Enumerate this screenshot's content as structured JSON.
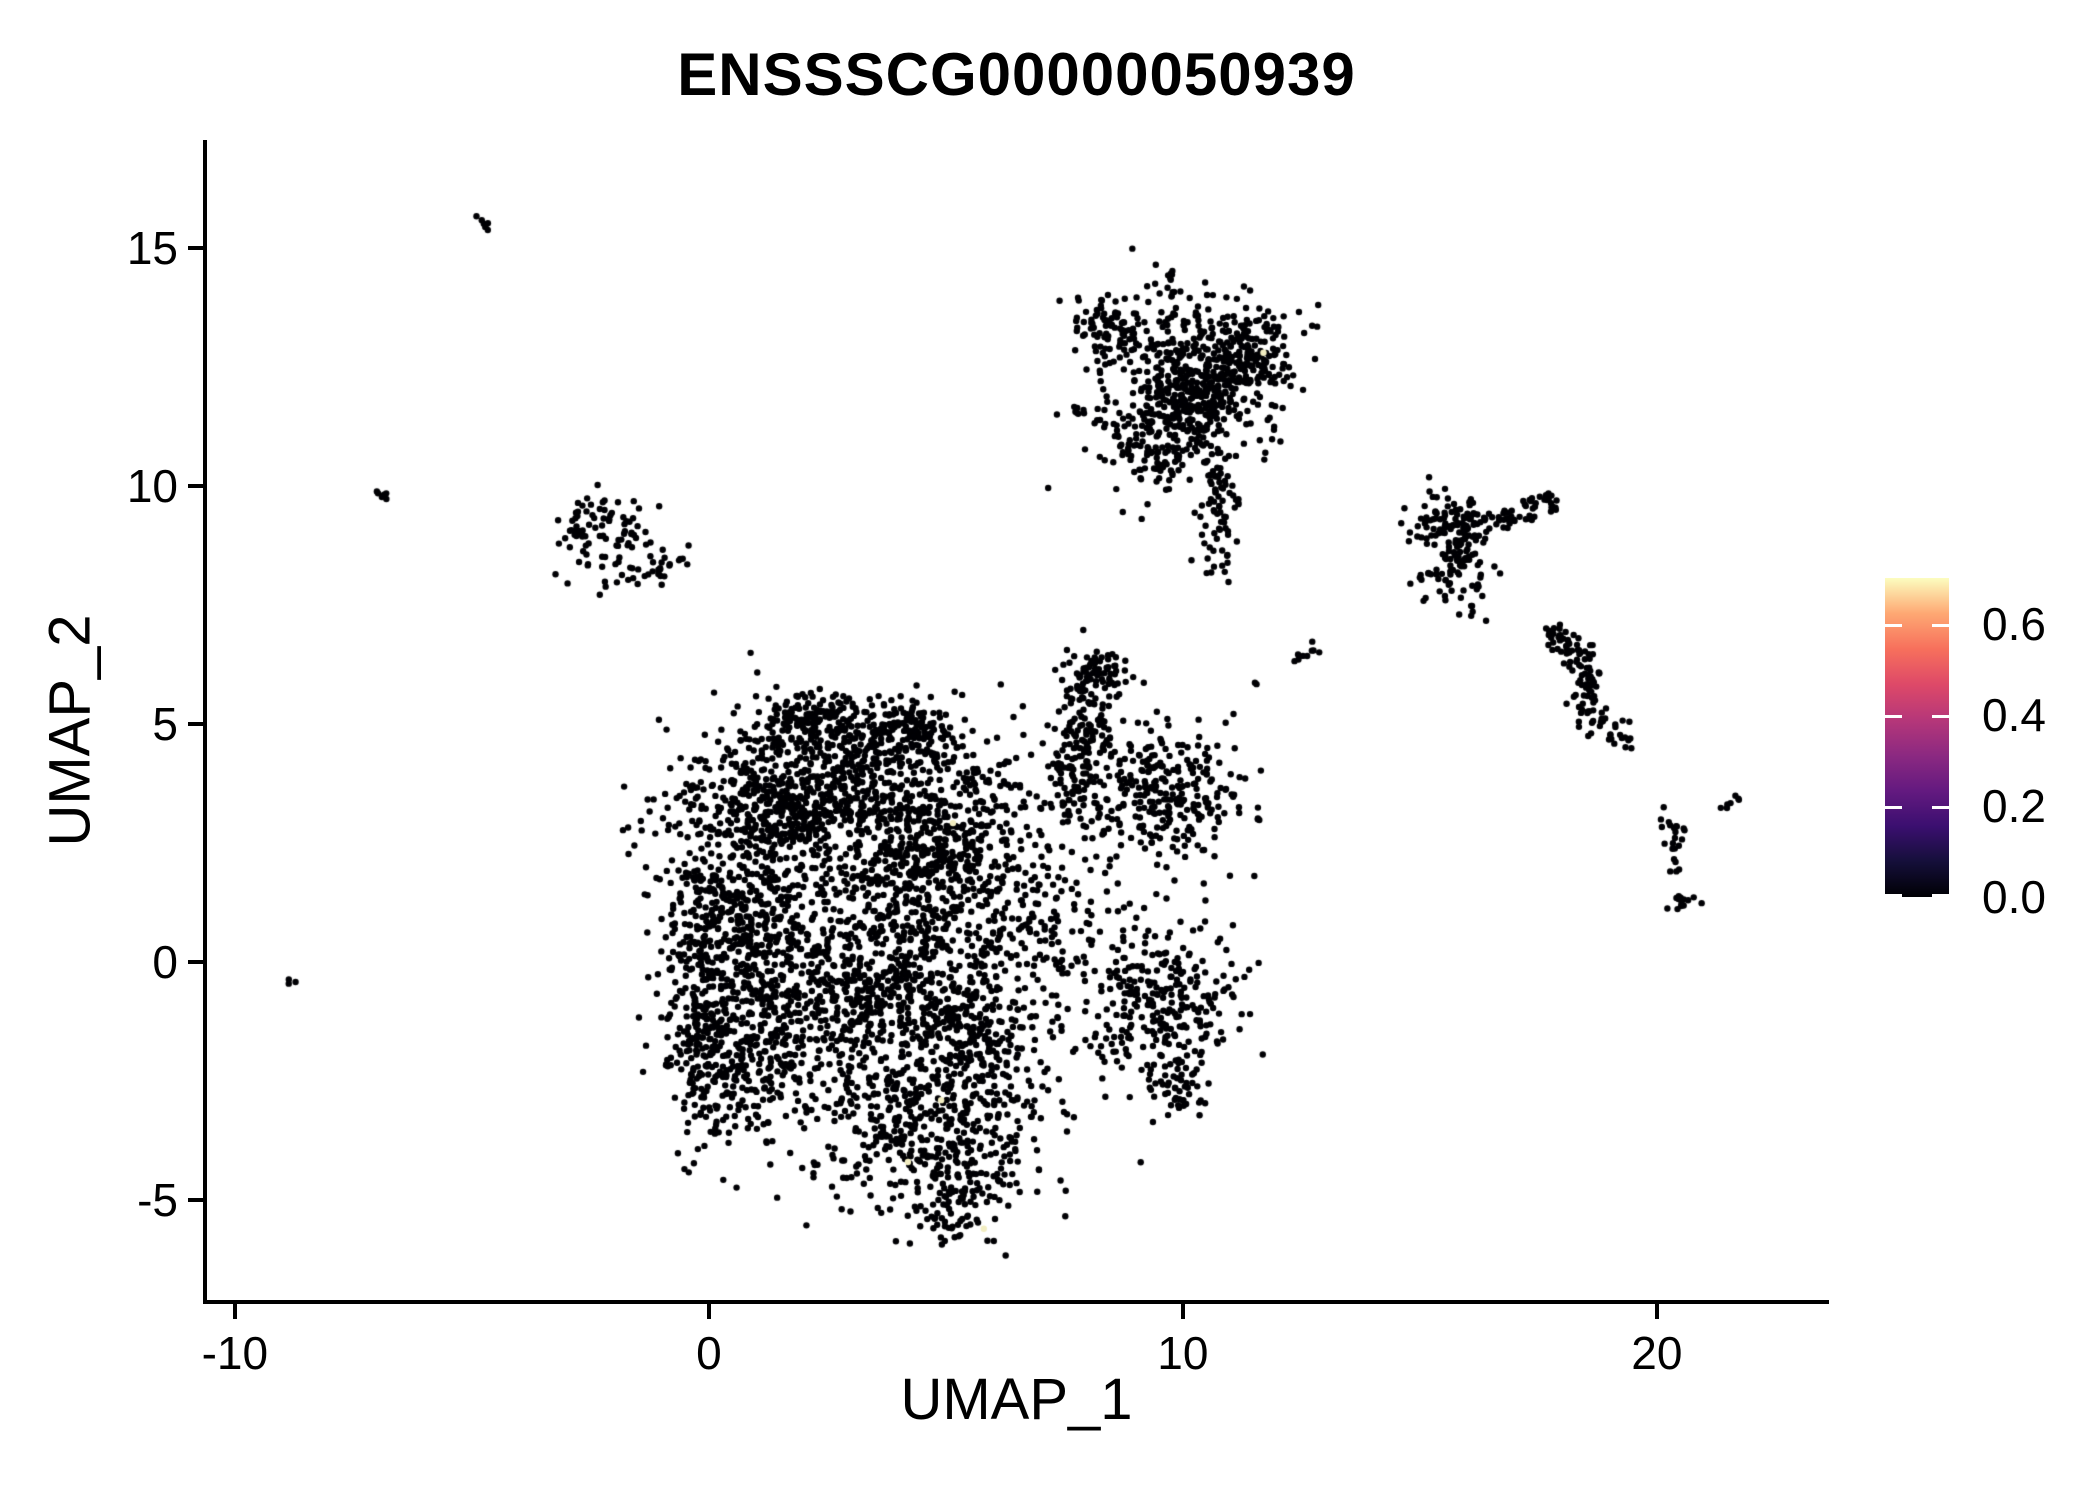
{
  "title": "ENSSSCG00000050939",
  "axes": {
    "x": {
      "label": "UMAP_1",
      "ticks": [
        "-10",
        "0",
        "10",
        "20"
      ],
      "tick_values": [
        -10,
        0,
        10,
        20
      ]
    },
    "y": {
      "label": "UMAP_2",
      "ticks": [
        "15",
        "10",
        "5",
        "0",
        "-5"
      ],
      "tick_values": [
        15,
        10,
        5,
        0,
        -5
      ]
    }
  },
  "legend": {
    "tick_labels": [
      "0.6",
      "0.4",
      "0.2",
      "0.0"
    ],
    "tick_values": [
      0.6,
      0.4,
      0.2,
      0.0
    ],
    "limits": [
      0,
      0.7
    ],
    "colormap_name": "magma",
    "gradient_bottom_to_top": [
      "#000004",
      "#150F3A",
      "#3B0F70",
      "#641A80",
      "#8C2981",
      "#B63779",
      "#DE4968",
      "#F7705C",
      "#FEA873",
      "#FCFDBF"
    ]
  },
  "chart_data": {
    "type": "scatter",
    "title": "ENSSSCG00000050939",
    "xlabel": "UMAP_1",
    "ylabel": "UMAP_2",
    "xlim": [
      -10.63,
      23.61
    ],
    "ylim": [
      -7.14,
      17.27
    ],
    "grid": false,
    "point_color": "#000004",
    "point_radius_px": 3.2,
    "n_points_approx": 6700,
    "clusters": [
      {
        "t": "p",
        "pts": [
          [
            -4.9,
            15.62
          ],
          [
            -4.55,
            15.35
          ]
        ],
        "s": 0.04,
        "n": 7
      },
      {
        "t": "p",
        "pts": [
          [
            -7.0,
            9.88
          ],
          [
            -6.68,
            9.62
          ]
        ],
        "s": 0.04,
        "n": 6
      },
      {
        "t": "g",
        "x": -8.8,
        "y": -0.42,
        "sx": 0.07,
        "sy": 0.05,
        "n": 3
      },
      {
        "t": "g",
        "x": -2.15,
        "y": 9.3,
        "sx": 0.5,
        "sy": 0.3,
        "n": 55
      },
      {
        "t": "g",
        "x": -2.8,
        "y": 8.9,
        "sx": 0.18,
        "sy": 0.15,
        "n": 10
      },
      {
        "t": "g",
        "x": -1.6,
        "y": 8.3,
        "sx": 0.55,
        "sy": 0.25,
        "n": 45
      },
      {
        "t": "g",
        "x": -2.2,
        "y": 8.75,
        "sx": 0.5,
        "sy": 0.4,
        "n": 12
      },
      {
        "t": "p",
        "pts": [
          [
            9.72,
            14.55
          ],
          [
            9.78,
            13.95
          ]
        ],
        "s": 0.05,
        "n": 11
      },
      {
        "t": "g",
        "x": 8.35,
        "y": 13.3,
        "sx": 0.4,
        "sy": 0.3,
        "n": 70
      },
      {
        "t": "g",
        "x": 10.35,
        "y": 12.5,
        "sx": 0.95,
        "sy": 0.75,
        "n": 430
      },
      {
        "t": "g",
        "x": 11.45,
        "y": 12.7,
        "sx": 0.35,
        "sy": 0.45,
        "n": 90
      },
      {
        "t": "g",
        "x": 9.6,
        "y": 11.1,
        "sx": 0.75,
        "sy": 0.55,
        "n": 150
      },
      {
        "t": "g",
        "x": 10.4,
        "y": 11.9,
        "sx": 0.5,
        "sy": 0.4,
        "n": 90
      },
      {
        "t": "p",
        "pts": [
          [
            8.55,
            11.15
          ],
          [
            7.65,
            11.72
          ]
        ],
        "s": 0.07,
        "n": 14
      },
      {
        "t": "g",
        "x": 10.72,
        "y": 9.6,
        "sx": 0.22,
        "sy": 0.65,
        "n": 65
      },
      {
        "t": "g",
        "x": 10.68,
        "y": 8.55,
        "sx": 0.12,
        "sy": 0.25,
        "n": 10
      },
      {
        "t": "g",
        "x": 9.3,
        "y": 10.4,
        "sx": 0.7,
        "sy": 0.4,
        "n": 30
      },
      {
        "t": "p",
        "pts": [
          [
            12.25,
            6.35
          ],
          [
            12.95,
            6.62
          ]
        ],
        "s": 0.06,
        "n": 9
      },
      {
        "t": "g",
        "x": 11.62,
        "y": 5.92,
        "sx": 0.06,
        "sy": 0.06,
        "n": 2
      },
      {
        "t": "g",
        "x": 9.2,
        "y": 5.85,
        "sx": 0.05,
        "sy": 0.05,
        "n": 1
      },
      {
        "t": "g",
        "x": 15.55,
        "y": 9.25,
        "sx": 0.35,
        "sy": 0.3,
        "n": 80
      },
      {
        "t": "p",
        "pts": [
          [
            16.0,
            9.25
          ],
          [
            16.9,
            9.3
          ],
          [
            17.9,
            9.72
          ]
        ],
        "s": 0.13,
        "n": 65
      },
      {
        "t": "g",
        "x": 15.9,
        "y": 8.4,
        "sx": 0.3,
        "sy": 0.5,
        "n": 75
      },
      {
        "t": "g",
        "x": 15.15,
        "y": 7.95,
        "sx": 0.3,
        "sy": 0.25,
        "n": 14
      },
      {
        "t": "g",
        "x": 16.4,
        "y": 7.15,
        "sx": 0.05,
        "sy": 0.05,
        "n": 1
      },
      {
        "t": "p",
        "pts": [
          [
            17.75,
            6.95
          ],
          [
            18.3,
            6.55
          ],
          [
            18.62,
            6.0
          ],
          [
            18.42,
            5.45
          ],
          [
            18.85,
            4.95
          ],
          [
            19.35,
            4.68
          ]
        ],
        "s": 0.14,
        "n": 120
      },
      {
        "t": "g",
        "x": 19.35,
        "y": 4.5,
        "sx": 0.05,
        "sy": 0.05,
        "n": 2
      },
      {
        "t": "p",
        "pts": [
          [
            20.0,
            3.1
          ],
          [
            20.55,
            2.75
          ]
        ],
        "s": 0.1,
        "n": 12
      },
      {
        "t": "g",
        "x": 20.3,
        "y": 2.55,
        "sx": 0.12,
        "sy": 0.1,
        "n": 6
      },
      {
        "t": "p",
        "pts": [
          [
            20.35,
            2.25
          ],
          [
            20.42,
            1.8
          ]
        ],
        "s": 0.05,
        "n": 5
      },
      {
        "t": "g",
        "x": 20.5,
        "y": 1.3,
        "sx": 0.13,
        "sy": 0.13,
        "n": 13
      },
      {
        "t": "p",
        "pts": [
          [
            21.3,
            3.2
          ],
          [
            21.75,
            3.45
          ]
        ],
        "s": 0.04,
        "n": 7
      },
      {
        "t": "g",
        "x": 2.9,
        "y": 4.8,
        "sx": 1.25,
        "sy": 0.45,
        "n": 300
      },
      {
        "t": "g",
        "x": 1.95,
        "y": 5.05,
        "sx": 0.4,
        "sy": 0.3,
        "n": 70
      },
      {
        "t": "g",
        "x": 4.3,
        "y": 4.85,
        "sx": 0.45,
        "sy": 0.35,
        "n": 80
      },
      {
        "t": "g",
        "x": 2.7,
        "y": 3.55,
        "sx": 1.7,
        "sy": 0.5,
        "n": 420
      },
      {
        "t": "g",
        "x": 1.6,
        "y": 3.0,
        "sx": 0.9,
        "sy": 0.5,
        "n": 200
      },
      {
        "t": "g",
        "x": 0.9,
        "y": 0.8,
        "sx": 1.0,
        "sy": 1.5,
        "n": 550
      },
      {
        "t": "g",
        "x": -0.1,
        "y": -0.3,
        "sx": 0.35,
        "sy": 1.7,
        "n": 200
      },
      {
        "t": "g",
        "x": 0.9,
        "y": -1.9,
        "sx": 0.9,
        "sy": 0.9,
        "n": 330
      },
      {
        "t": "g",
        "x": 4.2,
        "y": 0.7,
        "sx": 1.5,
        "sy": 1.7,
        "n": 700
      },
      {
        "t": "g",
        "x": 3.4,
        "y": -0.7,
        "sx": 0.6,
        "sy": 0.6,
        "n": 150
      },
      {
        "t": "g",
        "x": 5.4,
        "y": -1.4,
        "sx": 0.7,
        "sy": 0.6,
        "n": 160
      },
      {
        "t": "g",
        "x": 4.7,
        "y": 2.3,
        "sx": 0.8,
        "sy": 0.5,
        "n": 170
      },
      {
        "t": "p",
        "pts": [
          [
            8.2,
            6.2
          ],
          [
            7.9,
            4.9
          ],
          [
            7.6,
            3.4
          ]
        ],
        "s": 0.35,
        "n": 200
      },
      {
        "t": "g",
        "x": 8.25,
        "y": 6.05,
        "sx": 0.3,
        "sy": 0.25,
        "n": 35
      },
      {
        "t": "g",
        "x": 9.7,
        "y": 3.5,
        "sx": 0.75,
        "sy": 0.7,
        "n": 270
      },
      {
        "t": "g",
        "x": 9.5,
        "y": -0.9,
        "sx": 0.8,
        "sy": 0.85,
        "n": 290
      },
      {
        "t": "g",
        "x": 9.9,
        "y": -2.6,
        "sx": 0.3,
        "sy": 0.3,
        "n": 40
      },
      {
        "t": "g",
        "x": 4.7,
        "y": -3.3,
        "sx": 1.4,
        "sy": 0.9,
        "n": 480
      },
      {
        "t": "g",
        "x": 5.2,
        "y": -5.0,
        "sx": 0.55,
        "sy": 0.5,
        "n": 100
      },
      {
        "t": "g",
        "x": 6.5,
        "y": 1.5,
        "sx": 1.2,
        "sy": 1.5,
        "n": 250
      },
      {
        "t": "g",
        "x": 4.0,
        "y": 0.5,
        "sx": 2.2,
        "sy": 2.2,
        "n": 90
      }
    ],
    "highlight_color": "#F2EDC1",
    "highlight_points": [
      {
        "x": 5.15,
        "y": 2.92,
        "value_est": 0.65
      },
      {
        "x": 4.9,
        "y": -2.9,
        "value_est": 0.65
      },
      {
        "x": 4.2,
        "y": -4.2,
        "value_est": 0.65
      },
      {
        "x": 5.8,
        "y": -5.6,
        "value_est": 0.65
      },
      {
        "x": 11.7,
        "y": 12.8,
        "value_est": 0.65
      }
    ]
  }
}
